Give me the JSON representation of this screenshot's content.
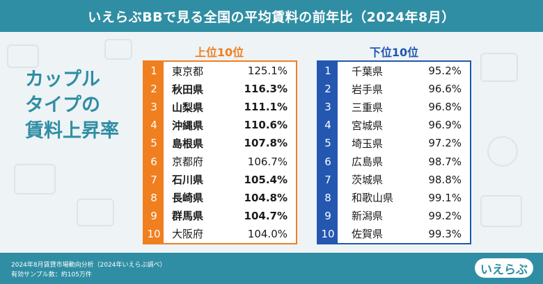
{
  "header": {
    "title": "いえらぶBBで見る全国の平均賃料の前年比（2024年8月）"
  },
  "headline": {
    "line1": "カップル",
    "line2": "タイプの",
    "line3": "賃料上昇率"
  },
  "top": {
    "label": "上位10位",
    "rows": [
      {
        "rank": "1",
        "pref": "東京都",
        "value": "125.1%"
      },
      {
        "rank": "2",
        "pref": "秋田県",
        "value": "116.3%"
      },
      {
        "rank": "3",
        "pref": "山梨県",
        "value": "111.1%"
      },
      {
        "rank": "4",
        "pref": "沖縄県",
        "value": "110.6%"
      },
      {
        "rank": "5",
        "pref": "島根県",
        "value": "107.8%"
      },
      {
        "rank": "6",
        "pref": "京都府",
        "value": "106.7%"
      },
      {
        "rank": "7",
        "pref": "石川県",
        "value": "105.4%"
      },
      {
        "rank": "8",
        "pref": "長崎県",
        "value": "104.8%"
      },
      {
        "rank": "9",
        "pref": "群馬県",
        "value": "104.7%"
      },
      {
        "rank": "10",
        "pref": "大阪府",
        "value": "104.0%"
      }
    ]
  },
  "bottom": {
    "label": "下位10位",
    "rows": [
      {
        "rank": "1",
        "pref": "千葉県",
        "value": "95.2%"
      },
      {
        "rank": "2",
        "pref": "岩手県",
        "value": "96.6%"
      },
      {
        "rank": "3",
        "pref": "三重県",
        "value": "96.8%"
      },
      {
        "rank": "4",
        "pref": "宮城県",
        "value": "96.9%"
      },
      {
        "rank": "5",
        "pref": "埼玉県",
        "value": "97.2%"
      },
      {
        "rank": "6",
        "pref": "広島県",
        "value": "98.7%"
      },
      {
        "rank": "7",
        "pref": "茨城県",
        "value": "98.8%"
      },
      {
        "rank": "8",
        "pref": "和歌山県",
        "value": "99.1%"
      },
      {
        "rank": "9",
        "pref": "新潟県",
        "value": "99.2%"
      },
      {
        "rank": "10",
        "pref": "佐賀県",
        "value": "99.3%"
      }
    ]
  },
  "footer": {
    "note1": "2024年8月賃貸市場動向分析（2024年いえらぶ調べ）",
    "note2": "有効サンプル数：約105万件",
    "logo": "いえらぶ"
  },
  "colors": {
    "brand": "#2f8ea3",
    "top_accent": "#f07f20",
    "bottom_accent": "#2357b0"
  }
}
